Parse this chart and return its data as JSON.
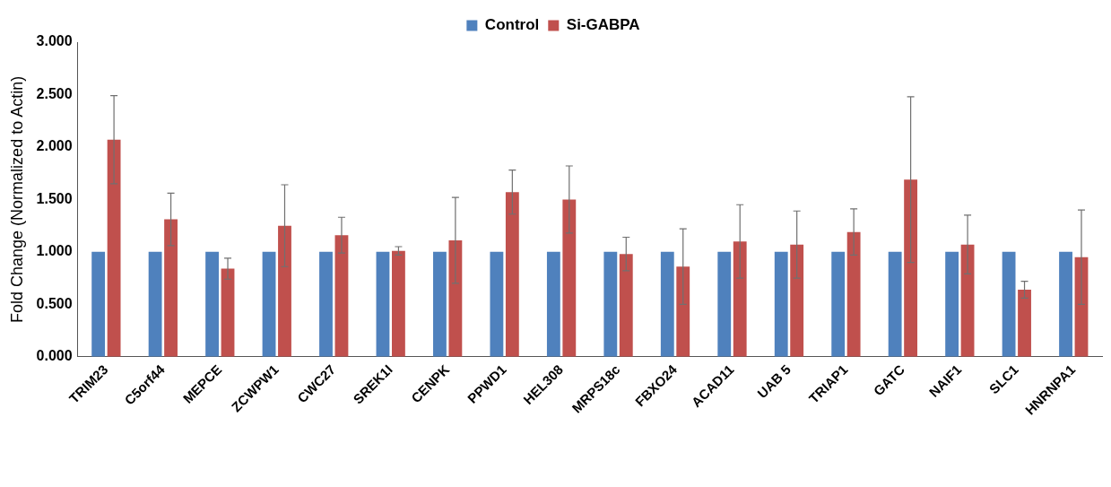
{
  "chart_data": {
    "type": "bar",
    "ylabel": "Fold Change (Normalized to Actin)",
    "categories": [
      "TRIM23",
      "C5orf44",
      "MEPCE",
      "ZCWPW1",
      "CWC27",
      "SREK1I",
      "CENPK",
      "PPWD1",
      "HEL308",
      "MRPS18c",
      "FBXO24",
      "ACAD11",
      "UAB 5",
      "TRIAP1",
      "GATC",
      "NAIF1",
      "SLC1",
      "HNRNPA1"
    ],
    "series": [
      {
        "name": "Control",
        "color": "#4f81bd",
        "values": [
          1,
          1,
          1,
          1,
          1,
          1,
          1,
          1,
          1,
          1,
          1,
          1,
          1,
          1,
          1,
          1,
          1,
          1
        ]
      },
      {
        "name": "Si-GABPA",
        "color": "#c0504d",
        "values": [
          2.07,
          1.31,
          0.84,
          1.25,
          1.16,
          1.01,
          1.11,
          1.57,
          1.5,
          0.98,
          0.86,
          1.1,
          1.07,
          1.19,
          1.69,
          1.07,
          0.64,
          0.95
        ],
        "errors": [
          0.42,
          0.25,
          0.1,
          0.39,
          0.17,
          0.04,
          0.41,
          0.21,
          0.32,
          0.16,
          0.36,
          0.35,
          0.32,
          0.22,
          0.79,
          0.28,
          0.08,
          0.45
        ]
      }
    ],
    "ylim": [
      0,
      3
    ],
    "yticks": [
      {
        "value": 0,
        "label": "0.000"
      },
      {
        "value": 0.5,
        "label": "0.500"
      },
      {
        "value": 1,
        "label": "1.000"
      },
      {
        "value": 1.5,
        "label": "1.500"
      },
      {
        "value": 2,
        "label": "2.000"
      },
      {
        "value": 2.5,
        "label": "2.500"
      },
      {
        "value": 3,
        "label": "3.000"
      }
    ],
    "grid": false,
    "legend": "top"
  }
}
